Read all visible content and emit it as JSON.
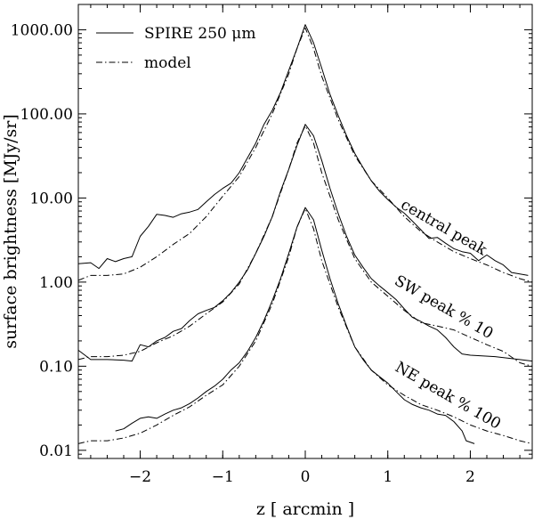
{
  "chart_data": {
    "type": "line",
    "title": "",
    "xlabel": "z [ arcmin ]",
    "ylabel": "surface brightness [MJy/sr]",
    "xlim": [
      -2.75,
      2.75
    ],
    "ylim": [
      0.008,
      2000
    ],
    "yscale": "log",
    "xticks": [
      -2,
      -1,
      0,
      1,
      2
    ],
    "xtick_labels": [
      "−2",
      "−1",
      "0",
      "1",
      "2"
    ],
    "yticks": [
      0.01,
      0.1,
      1,
      10,
      100,
      1000
    ],
    "ytick_labels": [
      "0.01",
      "0.10",
      "1.00",
      "10.00",
      "100.00",
      "1000.00"
    ],
    "legend": {
      "position": "top-left",
      "entries": [
        {
          "label": "SPIRE 250 μm",
          "style": "solid"
        },
        {
          "label": "model",
          "style": "dashdot"
        }
      ]
    },
    "annotations": [
      {
        "text": "central peak",
        "x": 1.65,
        "y": 4.0,
        "rotation": 30
      },
      {
        "text": "SW peak % 10",
        "x": 1.65,
        "y": 0.45,
        "rotation": 30
      },
      {
        "text": "NE peak % 100",
        "x": 1.7,
        "y": 0.04,
        "rotation": 30
      }
    ],
    "series": [
      {
        "name": "SPIRE 250 μm (central peak)",
        "style": "solid",
        "x": [
          -2.75,
          -2.6,
          -2.5,
          -2.4,
          -2.3,
          -2.2,
          -2.1,
          -2.0,
          -1.9,
          -1.8,
          -1.7,
          -1.6,
          -1.5,
          -1.4,
          -1.3,
          -1.2,
          -1.1,
          -1.0,
          -0.9,
          -0.8,
          -0.7,
          -0.6,
          -0.5,
          -0.4,
          -0.3,
          -0.2,
          -0.1,
          0.0,
          0.1,
          0.2,
          0.3,
          0.4,
          0.5,
          0.6,
          0.7,
          0.8,
          0.9,
          1.0,
          1.1,
          1.2,
          1.3,
          1.4,
          1.5,
          1.6,
          1.7,
          1.8,
          1.9,
          2.0,
          2.1,
          2.2,
          2.3,
          2.4,
          2.5,
          2.6,
          2.7
        ],
        "y": [
          1.65,
          1.7,
          1.45,
          1.9,
          1.75,
          1.9,
          2.0,
          3.5,
          4.6,
          6.4,
          6.2,
          5.9,
          6.5,
          6.8,
          7.3,
          9.0,
          11,
          13,
          15,
          20,
          30,
          45,
          75,
          110,
          180,
          330,
          600,
          1150,
          700,
          350,
          170,
          95,
          55,
          34,
          23,
          16,
          12,
          9.6,
          7.8,
          6.6,
          5.3,
          4.2,
          3.3,
          3.4,
          2.9,
          2.5,
          2.3,
          2.2,
          1.8,
          2.1,
          1.8,
          1.6,
          1.3,
          1.25,
          1.2
        ]
      },
      {
        "name": "model (central peak)",
        "style": "dashdot",
        "x": [
          -2.75,
          -2.6,
          -2.4,
          -2.2,
          -2.0,
          -1.8,
          -1.6,
          -1.4,
          -1.2,
          -1.0,
          -0.8,
          -0.6,
          -0.4,
          -0.2,
          -0.1,
          0.0,
          0.1,
          0.2,
          0.4,
          0.6,
          0.8,
          1.0,
          1.2,
          1.4,
          1.6,
          1.8,
          2.0,
          2.2,
          2.4,
          2.6,
          2.75
        ],
        "y": [
          1.05,
          1.2,
          1.2,
          1.25,
          1.5,
          2.0,
          2.8,
          3.8,
          6.0,
          10.5,
          18,
          40,
          100,
          300,
          600,
          1050,
          600,
          280,
          85,
          32,
          16,
          10,
          6.0,
          4.0,
          3.0,
          2.3,
          1.9,
          1.6,
          1.3,
          1.1,
          1.0
        ]
      },
      {
        "name": "SPIRE 250 μm (SW peak % 10)",
        "style": "solid",
        "x": [
          -2.75,
          -2.6,
          -2.4,
          -2.2,
          -2.1,
          -2.0,
          -1.9,
          -1.8,
          -1.7,
          -1.6,
          -1.5,
          -1.4,
          -1.3,
          -1.2,
          -1.1,
          -1.0,
          -0.9,
          -0.8,
          -0.7,
          -0.6,
          -0.5,
          -0.4,
          -0.3,
          -0.2,
          -0.1,
          0.0,
          0.1,
          0.2,
          0.3,
          0.4,
          0.5,
          0.6,
          0.7,
          0.8,
          0.9,
          1.0,
          1.1,
          1.2,
          1.3,
          1.4,
          1.5,
          1.6,
          1.7,
          1.8,
          1.9,
          2.0,
          2.3,
          2.6,
          2.75
        ],
        "y": [
          0.155,
          0.12,
          0.12,
          0.118,
          0.115,
          0.18,
          0.17,
          0.2,
          0.22,
          0.26,
          0.28,
          0.35,
          0.42,
          0.46,
          0.5,
          0.6,
          0.75,
          1.0,
          1.4,
          2.2,
          3.5,
          6.0,
          12,
          22,
          42,
          75,
          55,
          28,
          13,
          6.5,
          3.5,
          2.1,
          1.5,
          1.1,
          0.9,
          0.75,
          0.62,
          0.48,
          0.38,
          0.34,
          0.3,
          0.27,
          0.22,
          0.17,
          0.14,
          0.135,
          0.13,
          0.12,
          0.115
        ]
      },
      {
        "name": "model (SW peak % 10)",
        "style": "dashdot",
        "x": [
          -2.75,
          -2.6,
          -2.4,
          -2.2,
          -2.0,
          -1.8,
          -1.6,
          -1.4,
          -1.2,
          -1.0,
          -0.8,
          -0.6,
          -0.4,
          -0.2,
          -0.1,
          0.0,
          0.1,
          0.2,
          0.4,
          0.6,
          0.8,
          1.0,
          1.2,
          1.4,
          1.6,
          1.8,
          2.0,
          2.2,
          2.4,
          2.6,
          2.75
        ],
        "y": [
          0.12,
          0.13,
          0.13,
          0.135,
          0.15,
          0.19,
          0.23,
          0.3,
          0.42,
          0.58,
          0.95,
          2.2,
          6.0,
          22,
          45,
          72,
          45,
          20,
          5.5,
          1.9,
          1.0,
          0.68,
          0.46,
          0.33,
          0.3,
          0.27,
          0.22,
          0.18,
          0.15,
          0.11,
          0.1
        ]
      },
      {
        "name": "SPIRE 250 μm (NE peak % 100)",
        "style": "solid",
        "x": [
          -2.3,
          -2.2,
          -2.1,
          -2.0,
          -1.9,
          -1.8,
          -1.7,
          -1.6,
          -1.5,
          -1.4,
          -1.3,
          -1.2,
          -1.1,
          -1.0,
          -0.9,
          -0.8,
          -0.7,
          -0.6,
          -0.5,
          -0.4,
          -0.3,
          -0.2,
          -0.1,
          0.0,
          0.1,
          0.2,
          0.3,
          0.4,
          0.5,
          0.6,
          0.7,
          0.8,
          0.9,
          1.0,
          1.1,
          1.2,
          1.3,
          1.4,
          1.5,
          1.6,
          1.7,
          1.8,
          1.9,
          1.95,
          2.05
        ],
        "y": [
          0.017,
          0.018,
          0.021,
          0.024,
          0.025,
          0.024,
          0.027,
          0.03,
          0.032,
          0.036,
          0.042,
          0.05,
          0.058,
          0.07,
          0.09,
          0.11,
          0.15,
          0.22,
          0.35,
          0.6,
          1.1,
          2.2,
          4.5,
          7.7,
          5.5,
          2.4,
          1.1,
          0.55,
          0.3,
          0.17,
          0.12,
          0.09,
          0.075,
          0.063,
          0.05,
          0.04,
          0.035,
          0.032,
          0.03,
          0.027,
          0.026,
          0.022,
          0.017,
          0.013,
          0.012
        ]
      },
      {
        "name": "model (NE peak % 100)",
        "style": "dashdot",
        "x": [
          -2.75,
          -2.6,
          -2.4,
          -2.2,
          -2.0,
          -1.8,
          -1.6,
          -1.4,
          -1.2,
          -1.0,
          -0.8,
          -0.6,
          -0.4,
          -0.2,
          -0.1,
          0.0,
          0.1,
          0.2,
          0.4,
          0.6,
          0.8,
          1.0,
          1.2,
          1.4,
          1.6,
          1.8,
          2.0,
          2.2,
          2.4,
          2.6,
          2.75
        ],
        "y": [
          0.012,
          0.013,
          0.013,
          0.014,
          0.016,
          0.02,
          0.026,
          0.033,
          0.045,
          0.06,
          0.1,
          0.2,
          0.55,
          2.0,
          4.5,
          7.5,
          4.3,
          1.8,
          0.5,
          0.17,
          0.09,
          0.06,
          0.045,
          0.035,
          0.03,
          0.025,
          0.02,
          0.017,
          0.015,
          0.013,
          0.012
        ]
      }
    ]
  }
}
